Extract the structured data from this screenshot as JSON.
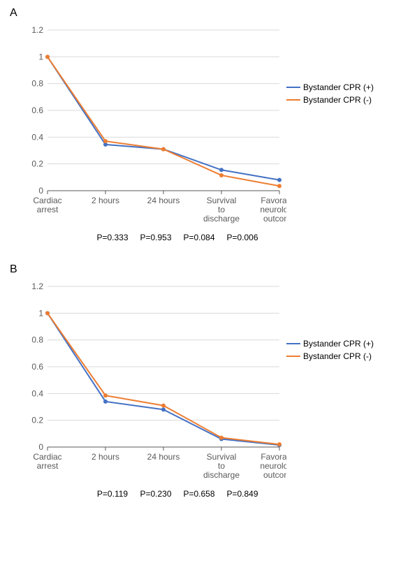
{
  "panels": [
    {
      "label": "A",
      "chart": {
        "type": "line",
        "x_categories": [
          "Cardiac arrest",
          "2 hours",
          "24 hours",
          "Survival to discharge",
          "Favorable neurologic outcome"
        ],
        "x_category_wrap": [
          [
            "Cardiac",
            "arrest"
          ],
          [
            "2 hours"
          ],
          [
            "24 hours"
          ],
          [
            "Survival",
            "to",
            "discharge"
          ],
          [
            "Favorable",
            "neurologic",
            "outcome"
          ]
        ],
        "ylim": [
          0,
          1.2
        ],
        "ytick_step": 0.2,
        "yticks": [
          "0",
          "0.2",
          "0.4",
          "0.6",
          "0.8",
          "1",
          "1.2"
        ],
        "series": [
          {
            "name": "Bystander CPR (+)",
            "color": "#4472c4",
            "values": [
              1.0,
              0.345,
              0.31,
              0.155,
              0.08
            ]
          },
          {
            "name": "Bystander CPR (-)",
            "color": "#ed7d31",
            "values": [
              1.0,
              0.37,
              0.31,
              0.115,
              0.035
            ]
          }
        ],
        "marker_size": 3,
        "line_width": 2,
        "background_color": "#ffffff",
        "grid_color": "#d9d9d9",
        "axis_color": "#595959",
        "label_fontsize": 12,
        "tick_fontsize": 12
      },
      "p_values": [
        "P=0.333",
        "P=0.953",
        "P=0.084",
        "P=0.006"
      ]
    },
    {
      "label": "B",
      "chart": {
        "type": "line",
        "x_categories": [
          "Cardiac arrest",
          "2 hours",
          "24 hours",
          "Survival to discharge",
          "Favorable neurologic outcome"
        ],
        "x_category_wrap": [
          [
            "Cardiac",
            "arrest"
          ],
          [
            "2 hours"
          ],
          [
            "24 hours"
          ],
          [
            "Survival",
            "to",
            "discharge"
          ],
          [
            "Favorable",
            "neurologic",
            "outcome"
          ]
        ],
        "ylim": [
          0,
          1.2
        ],
        "ytick_step": 0.2,
        "yticks": [
          "0",
          "0.2",
          "0.4",
          "0.6",
          "0.8",
          "1",
          "1.2"
        ],
        "series": [
          {
            "name": "Bystander CPR (+)",
            "color": "#4472c4",
            "values": [
              1.0,
              0.34,
              0.28,
              0.06,
              0.015
            ]
          },
          {
            "name": "Bystander CPR (-)",
            "color": "#ed7d31",
            "values": [
              1.0,
              0.385,
              0.31,
              0.07,
              0.02
            ]
          }
        ],
        "marker_size": 3,
        "line_width": 2,
        "background_color": "#ffffff",
        "grid_color": "#d9d9d9",
        "axis_color": "#595959",
        "label_fontsize": 12,
        "tick_fontsize": 12
      },
      "p_values": [
        "P=0.119",
        "P=0.230",
        "P=0.658",
        "P=0.849"
      ]
    }
  ]
}
